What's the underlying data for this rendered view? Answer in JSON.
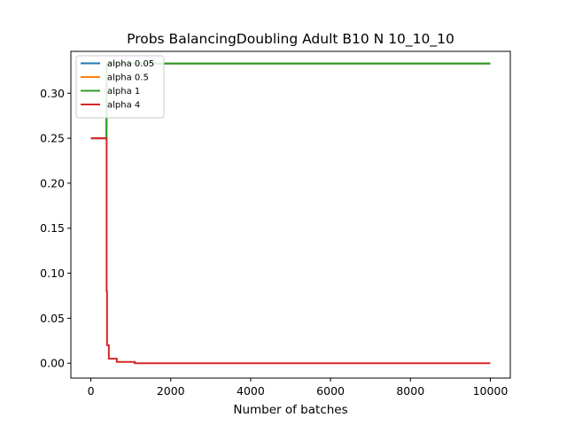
{
  "chart_data": {
    "type": "line",
    "title": "Probs BalancingDoubling Adult B10 N 10_10_10",
    "xlabel": "Number of batches",
    "ylabel": "",
    "xlim": [
      -500,
      10500
    ],
    "ylim": [
      -0.0165,
      0.3465
    ],
    "x_ticks": [
      0,
      2000,
      4000,
      6000,
      8000,
      10000
    ],
    "x_tick_labels": [
      "0",
      "2000",
      "4000",
      "6000",
      "8000",
      "10000"
    ],
    "y_ticks": [
      0.0,
      0.05,
      0.1,
      0.15,
      0.2,
      0.25,
      0.3
    ],
    "y_tick_labels": [
      "0.00",
      "0.05",
      "0.10",
      "0.15",
      "0.20",
      "0.25",
      "0.30"
    ],
    "grid": false,
    "legend_position": "top-left",
    "series": [
      {
        "name": "alpha 0.05",
        "color": "#1f77b4",
        "x": [
          0,
          390,
          400,
          10000
        ],
        "y": [
          0.25,
          0.25,
          0.333,
          0.333
        ]
      },
      {
        "name": "alpha 0.5",
        "color": "#ff7f0e",
        "x": [
          0,
          390,
          400,
          10000
        ],
        "y": [
          0.25,
          0.25,
          0.333,
          0.333
        ]
      },
      {
        "name": "alpha 1",
        "color": "#2ca02c",
        "x": [
          0,
          390,
          400,
          10000
        ],
        "y": [
          0.25,
          0.25,
          0.333,
          0.333
        ]
      },
      {
        "name": "alpha 4",
        "color": "#d62728",
        "x": [
          0,
          390,
          395,
          395,
          405,
          405,
          450,
          450,
          650,
          650,
          1100,
          1100,
          10000
        ],
        "y": [
          0.25,
          0.25,
          0.25,
          0.08,
          0.08,
          0.02,
          0.02,
          0.005,
          0.005,
          0.0015,
          0.0015,
          0.0,
          0.0
        ]
      }
    ]
  }
}
